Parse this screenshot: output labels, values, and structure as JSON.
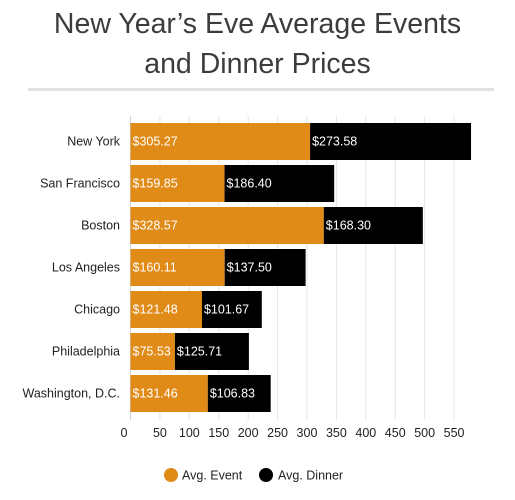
{
  "chart_data": {
    "type": "bar",
    "orientation": "horizontal",
    "stacked": true,
    "title_lines": [
      "New Year’s Eve Average Events",
      "and Dinner Prices"
    ],
    "categories": [
      "New York",
      "San Francisco",
      "Boston",
      "Los Angeles",
      "Chicago",
      "Philadelphia",
      "Washington, D.C."
    ],
    "series": [
      {
        "name": "Avg. Event",
        "color": "#e08a17",
        "values": [
          305.27,
          159.85,
          328.57,
          160.11,
          121.48,
          75.53,
          131.46
        ],
        "labels": [
          "$305.27",
          "$159.85",
          "$328.57",
          "$160.11",
          "$121.48",
          "$75.53",
          "$131.46"
        ]
      },
      {
        "name": "Avg. Dinner",
        "color": "#000000",
        "values": [
          273.58,
          186.4,
          168.3,
          137.5,
          101.67,
          125.71,
          106.83
        ],
        "labels": [
          "$273.58",
          "$186.40",
          "$168.30",
          "$137.50",
          "$101.67",
          "$125.71",
          "$106.83"
        ]
      }
    ],
    "xticks": [
      0,
      50,
      100,
      150,
      200,
      250,
      300,
      350,
      400,
      450,
      500,
      550
    ],
    "xlim": [
      0,
      600
    ],
    "grid": true,
    "legend_position": "bottom"
  }
}
